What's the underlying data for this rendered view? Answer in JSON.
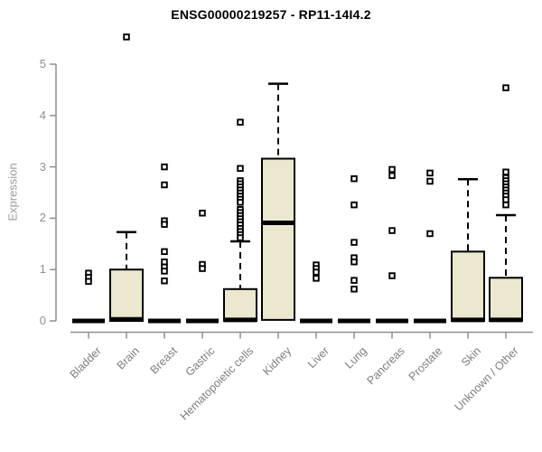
{
  "chart_data": {
    "type": "boxplot",
    "title": "ENSG00000219257 - RP11-14I4.2",
    "ylabel": "Expression",
    "xlabel": "",
    "ylim": [
      0,
      5.6
    ],
    "yticks": [
      0,
      1,
      2,
      3,
      4,
      5
    ],
    "grid": false,
    "legend": "none",
    "categories": [
      "Bladder",
      "Brain",
      "Breast",
      "Gastric",
      "Hematopoietic cells",
      "Kidney",
      "Liver",
      "Lung",
      "Pancreas",
      "Prostate",
      "Skin",
      "Unknown / Other"
    ],
    "boxes": [
      {
        "category": "Bladder",
        "q1": 0,
        "median": 0,
        "q3": 0,
        "whisker_low": 0,
        "whisker_high": 0,
        "outliers": [
          0.93,
          0.85,
          0.77
        ]
      },
      {
        "category": "Brain",
        "q1": 0,
        "median": 0.03,
        "q3": 1.0,
        "whisker_low": 0,
        "whisker_high": 1.73,
        "outliers": [
          5.53
        ]
      },
      {
        "category": "Breast",
        "q1": 0,
        "median": 0,
        "q3": 0,
        "whisker_low": 0,
        "whisker_high": 0,
        "outliers": [
          3.0,
          2.65,
          1.95,
          1.88,
          1.35,
          1.15,
          1.05,
          0.97,
          0.78
        ]
      },
      {
        "category": "Gastric",
        "q1": 0,
        "median": 0,
        "q3": 0,
        "whisker_low": 0,
        "whisker_high": 0,
        "outliers": [
          2.1,
          1.1,
          1.02
        ]
      },
      {
        "category": "Hematopoietic cells",
        "q1": 0,
        "median": 0.02,
        "q3": 0.62,
        "whisker_low": 0,
        "whisker_high": 1.55,
        "outliers": [
          3.87,
          2.97,
          2.73,
          2.67,
          2.61,
          2.55,
          2.49,
          2.43,
          2.37,
          2.31,
          2.17,
          2.11,
          2.05,
          1.99,
          1.93,
          1.87,
          1.8,
          1.74,
          1.68,
          1.62
        ]
      },
      {
        "category": "Kidney",
        "q1": 0.02,
        "median": 1.91,
        "q3": 3.16,
        "whisker_low": 0.02,
        "whisker_high": 4.62,
        "outliers": []
      },
      {
        "category": "Liver",
        "q1": 0,
        "median": 0,
        "q3": 0,
        "whisker_low": 0,
        "whisker_high": 0,
        "outliers": [
          1.09,
          1.02,
          0.95,
          0.83
        ]
      },
      {
        "category": "Lung",
        "q1": 0,
        "median": 0,
        "q3": 0,
        "whisker_low": 0,
        "whisker_high": 0,
        "outliers": [
          2.77,
          2.26,
          1.53,
          1.23,
          1.15,
          0.79,
          0.62
        ]
      },
      {
        "category": "Pancreas",
        "q1": 0,
        "median": 0,
        "q3": 0,
        "whisker_low": 0,
        "whisker_high": 0,
        "outliers": [
          2.95,
          2.83,
          1.76,
          0.88
        ]
      },
      {
        "category": "Prostate",
        "q1": 0,
        "median": 0,
        "q3": 0,
        "whisker_low": 0,
        "whisker_high": 0,
        "outliers": [
          2.88,
          2.72,
          1.7
        ]
      },
      {
        "category": "Skin",
        "q1": 0,
        "median": 0.02,
        "q3": 1.35,
        "whisker_low": 0,
        "whisker_high": 2.76,
        "outliers": []
      },
      {
        "category": "Unknown / Other",
        "q1": 0,
        "median": 0.02,
        "q3": 0.84,
        "whisker_low": 0,
        "whisker_high": 2.06,
        "outliers": [
          4.54,
          2.9,
          2.79,
          2.73,
          2.67,
          2.61,
          2.55,
          2.49,
          2.43,
          2.36,
          2.26
        ]
      }
    ],
    "colors": {
      "box_fill": "#ece7cf",
      "box_border": "#000000",
      "median": "#000000",
      "whisker": "#000000",
      "outlier_stroke": "#000000",
      "outlier_fill": "#ffffff",
      "axis": "#8f8f8f",
      "tick_label": "#7d7d7d",
      "title": "#000000"
    }
  }
}
